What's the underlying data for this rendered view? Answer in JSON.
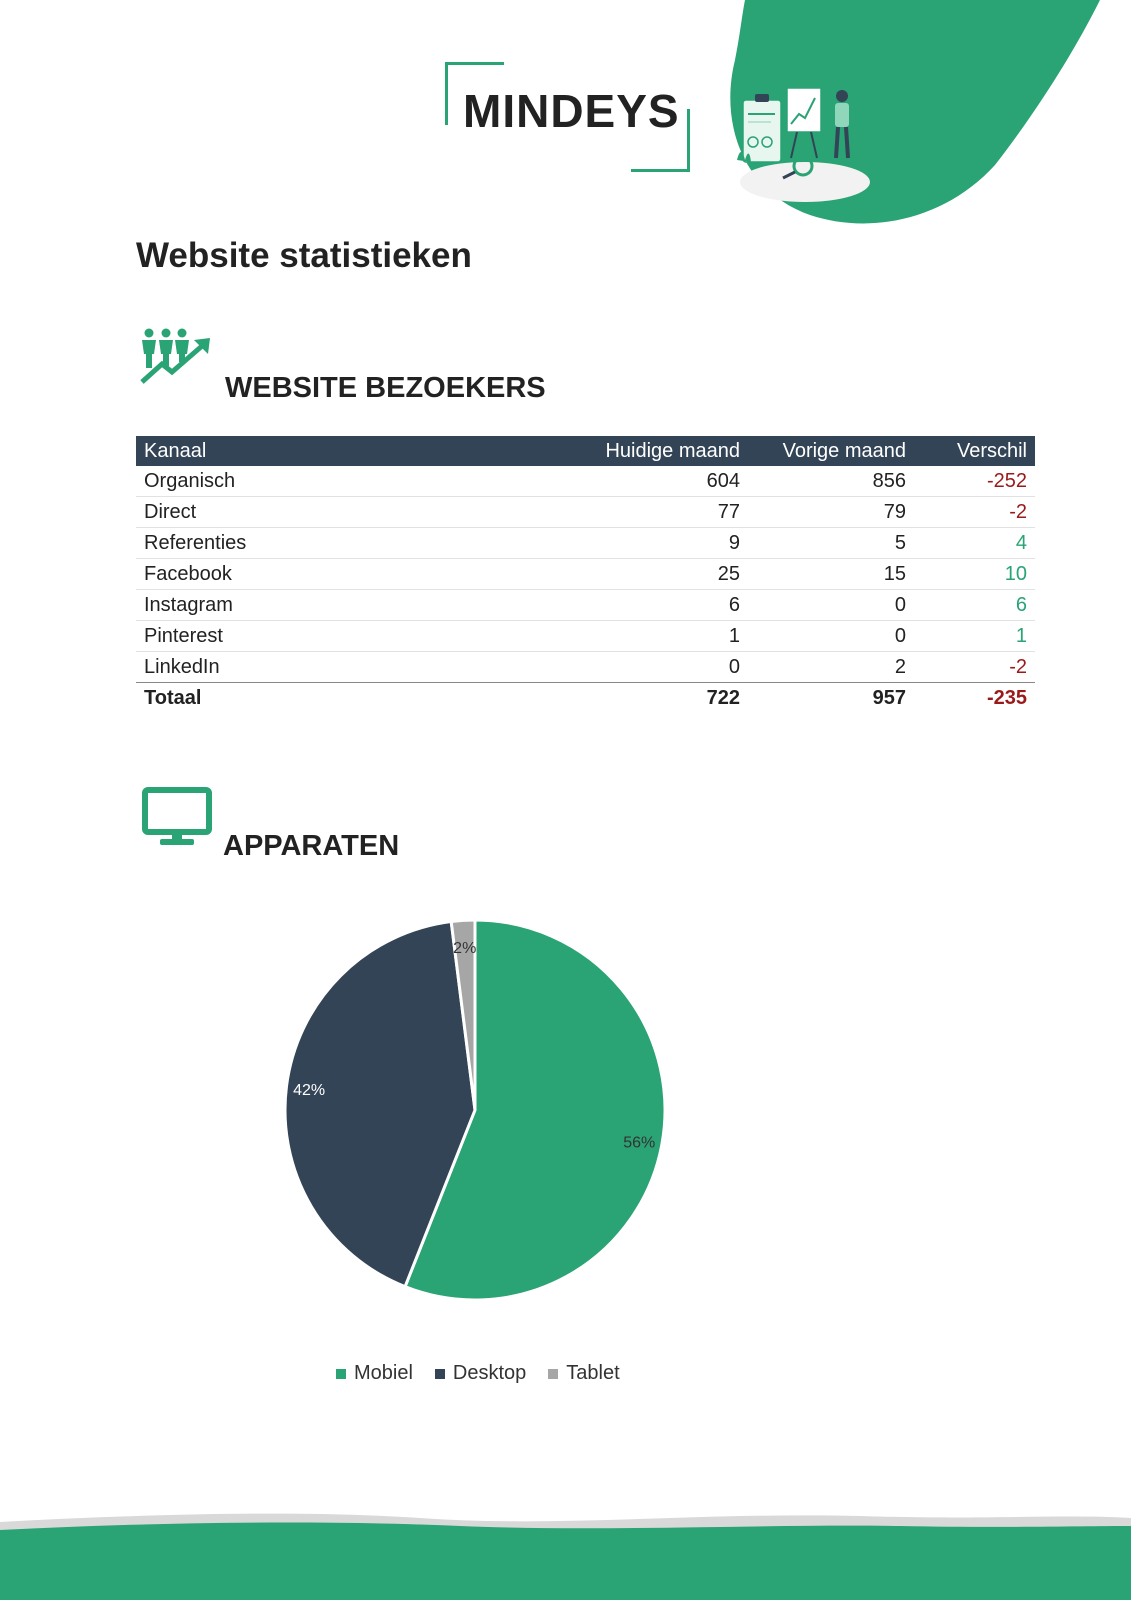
{
  "brand": {
    "name": "MINDEYS"
  },
  "page": {
    "title": "Website statistieken"
  },
  "visitors": {
    "title": "WEBSITE BEZOEKERS",
    "columns": [
      "Kanaal",
      "Huidige maand",
      "Vorige maand",
      "Verschil"
    ],
    "rows": [
      {
        "channel": "Organisch",
        "current": "604",
        "previous": "856",
        "diff": "-252"
      },
      {
        "channel": "Direct",
        "current": "77",
        "previous": "79",
        "diff": "-2"
      },
      {
        "channel": "Referenties",
        "current": "9",
        "previous": "5",
        "diff": "4"
      },
      {
        "channel": "Facebook",
        "current": "25",
        "previous": "15",
        "diff": "10"
      },
      {
        "channel": "Instagram",
        "current": "6",
        "previous": "0",
        "diff": "6"
      },
      {
        "channel": "Pinterest",
        "current": "1",
        "previous": "0",
        "diff": "1"
      },
      {
        "channel": "LinkedIn",
        "current": "0",
        "previous": "2",
        "diff": "-2"
      }
    ],
    "total": {
      "channel": "Totaal",
      "current": "722",
      "previous": "957",
      "diff": "-235"
    }
  },
  "devices": {
    "title": "APPARATEN"
  },
  "colors": {
    "accent": "#2aa375",
    "header": "#334456",
    "negative": "#9a1a1a",
    "tablet": "#a6a6a6"
  },
  "chart_data": {
    "type": "pie",
    "categories": [
      "Mobiel",
      "Desktop",
      "Tablet"
    ],
    "values": [
      56,
      42,
      2
    ],
    "labels": [
      "56%",
      "42%",
      "2%"
    ],
    "colors": [
      "#2aa375",
      "#334456",
      "#a6a6a6"
    ],
    "legend": "bottom"
  }
}
